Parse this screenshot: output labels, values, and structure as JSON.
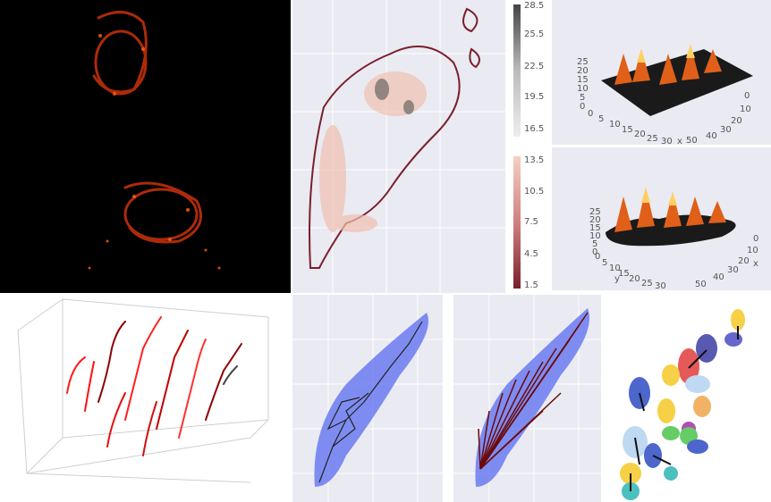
{
  "colorbar": {
    "upper_ticks": [
      "28.5",
      "25.5",
      "22.5",
      "19.5",
      "16.5"
    ],
    "lower_ticks": [
      "13.5",
      "10.5",
      "7.5",
      "4.5",
      "1.5"
    ]
  },
  "surface_top": {
    "z_ticks": [
      "25",
      "20",
      "15",
      "10",
      "5",
      "0"
    ],
    "y_ticks": [
      "0",
      "5",
      "10",
      "15",
      "20",
      "25",
      "30"
    ],
    "x_ticks": [
      "0",
      "10",
      "20",
      "30",
      "40",
      "50"
    ],
    "x_label": "x"
  },
  "surface_bottom": {
    "z_ticks": [
      "25",
      "20",
      "15",
      "10",
      "5",
      "0"
    ],
    "y_ticks": [
      "0",
      "5",
      "10",
      "15",
      "20",
      "25",
      "30"
    ],
    "x_ticks": [
      "0",
      "10",
      "20",
      "30",
      "40",
      "50"
    ],
    "y_label": "y",
    "x_label": "x"
  },
  "colors": {
    "microscopy_bg": "#000000",
    "contour_dark": "#7a1f2b",
    "graph_nodes": "#5a6cf0",
    "plot_bg": "#eaeaf2"
  }
}
